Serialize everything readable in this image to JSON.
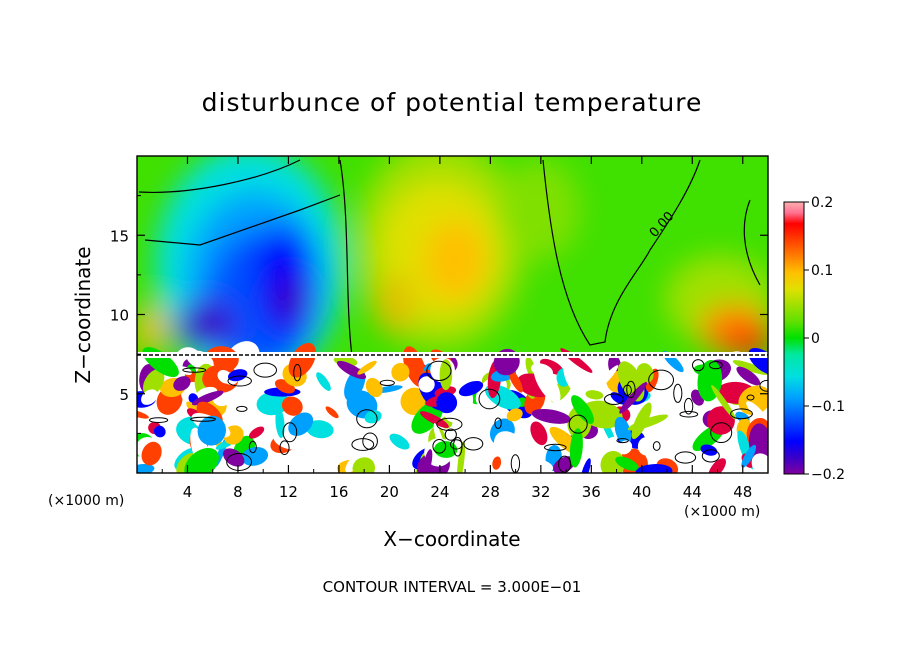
{
  "chart_data": {
    "type": "heatmap",
    "title": "disturbunce of potential temperature",
    "xlabel": "X−coordinate",
    "ylabel": "Z−coordinate",
    "x_unit_left": "(×1000 m)",
    "x_unit_right": "(×1000 m)",
    "footer": "CONTOUR INTERVAL = 3.000E−01",
    "contour_label": "0.00",
    "xlim": [
      0,
      50
    ],
    "ylim": [
      0,
      20
    ],
    "x_ticks": [
      "4",
      "8",
      "12",
      "16",
      "20",
      "24",
      "28",
      "32",
      "36",
      "40",
      "44",
      "48"
    ],
    "y_ticks": [
      "5",
      "10",
      "15"
    ],
    "colorbar": {
      "ticks": [
        "0.2",
        "0.1",
        "0",
        "−0.1",
        "−0.2"
      ],
      "range": [
        -0.2,
        0.2
      ],
      "colors": [
        "#8000a0",
        "#3a00c8",
        "#0000ff",
        "#0050ff",
        "#00a0ff",
        "#00e0e0",
        "#00e8a0",
        "#00e000",
        "#60e000",
        "#a0e000",
        "#e0e000",
        "#ffc000",
        "#ff8000",
        "#ff4000",
        "#ff0000",
        "#e00040",
        "#ff7090",
        "#ffb0b0"
      ]
    },
    "features": [
      {
        "x": 11.5,
        "z": 13.0,
        "value": -0.2
      },
      {
        "x": 7.0,
        "z": 11.0,
        "value": -0.2
      },
      {
        "x": 25.0,
        "z": 13.0,
        "value": 0.08
      },
      {
        "x": 37.0,
        "z": 17.0,
        "value": 0.0
      },
      {
        "x": 47.0,
        "z": 9.5,
        "value": 0.14
      }
    ]
  }
}
